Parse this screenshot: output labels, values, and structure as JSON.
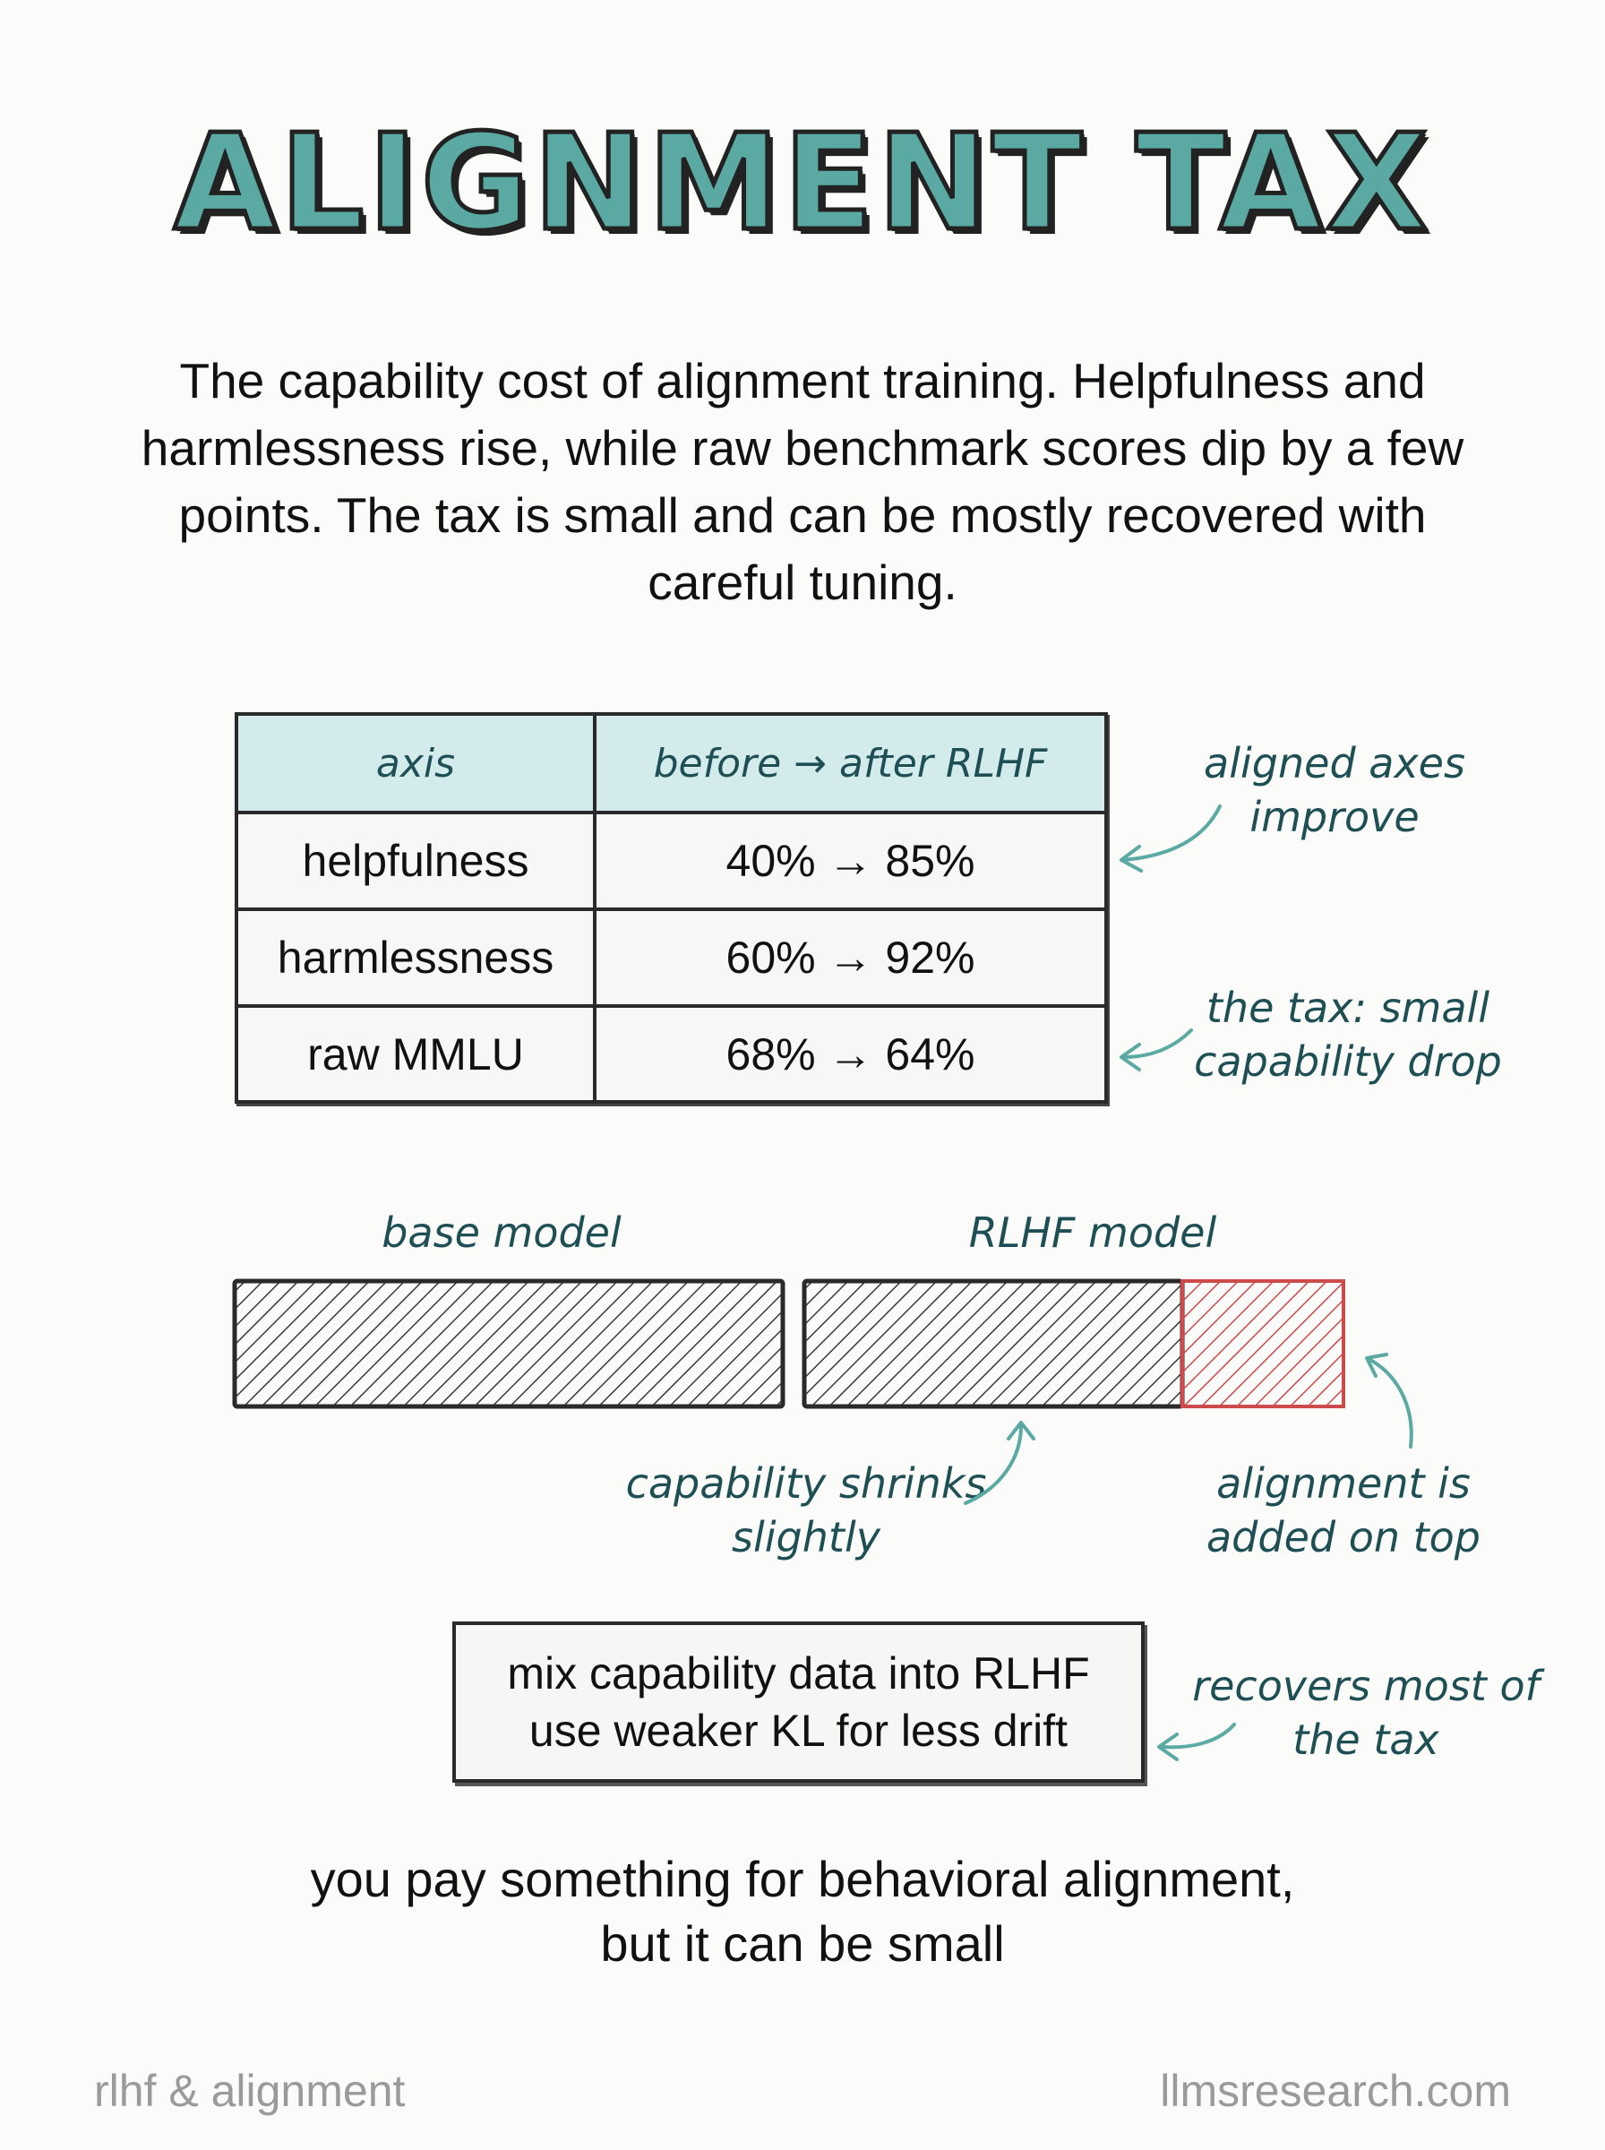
{
  "title": "ALIGNMENT TAX",
  "intro": "The capability cost of alignment training. Helpfulness and harmlessness rise, while raw benchmark scores dip by a few points. The tax is small and can be mostly recovered with careful tuning.",
  "table": {
    "headers": [
      "axis",
      "before → after RLHF"
    ],
    "rows": [
      {
        "axis": "helpfulness",
        "change": "40% → 85%"
      },
      {
        "axis": "harmlessness",
        "change": "60% → 92%"
      },
      {
        "axis": "raw MMLU",
        "change": "68% → 64%"
      }
    ]
  },
  "annotations": {
    "aligned": "aligned axes improve",
    "tax": "the tax: small capability drop",
    "shrinks": "capability shrinks slightly",
    "added": "alignment is added on top",
    "recovers": "recovers most of the tax"
  },
  "bars": {
    "base_label": "base model",
    "rlhf_label": "RLHF model"
  },
  "tip": {
    "line1": "mix capability data into RLHF",
    "line2": "use weaker KL for less drift"
  },
  "closing": {
    "line1": "you pay something for behavioral alignment,",
    "line2": "but it can be small"
  },
  "footer": {
    "left": "rlhf & alignment",
    "right": "llmsresearch.com"
  },
  "colors": {
    "title_fill": "#5aaaa3",
    "header_bg": "#d3eceb",
    "annotation_text": "#1e4f55",
    "arrow": "#5aaaa3",
    "alignment_red": "#cc4a4a"
  }
}
